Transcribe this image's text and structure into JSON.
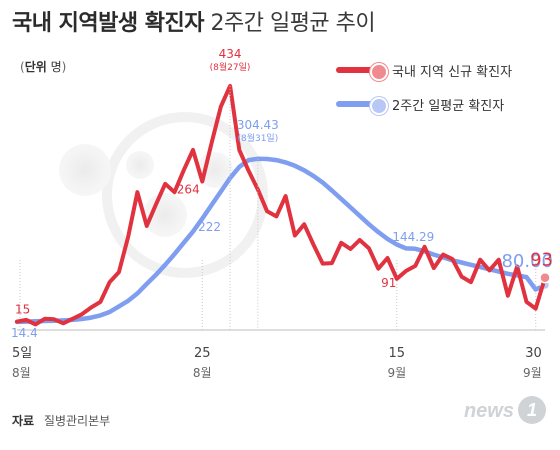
{
  "header": {
    "title_bold": "국내 지역발생 확진자",
    "title_light": "2주간 일평균 추이"
  },
  "unit": {
    "label": "단위",
    "value": "명"
  },
  "legend": [
    {
      "label": "국내 지역 신규 확진자",
      "color": "#e0323f"
    },
    {
      "label": "2주간 일평균 확진자",
      "color": "#7f9ef0"
    }
  ],
  "source": {
    "label": "자료",
    "value": "질병관리본부"
  },
  "logo": {
    "text": "news",
    "badge": "1"
  },
  "chart_data": {
    "type": "line",
    "x_ticks": [
      {
        "day": 1,
        "top": "5일",
        "bottom": "8월"
      },
      {
        "day": 21,
        "top": "25",
        "bottom": "8월"
      },
      {
        "day": 42,
        "top": "15",
        "bottom": "9월"
      },
      {
        "day": 57,
        "top": "30",
        "bottom": "9월"
      }
    ],
    "y_range": [
      0,
      480
    ],
    "series": [
      {
        "name": "국내 지역 신규 확진자",
        "color": "#e0323f",
        "values": [
          15,
          18,
          10,
          20,
          19,
          12,
          20,
          28,
          40,
          50,
          85,
          103,
          166,
          245,
          185,
          223,
          260,
          245,
          284,
          320,
          264,
          332,
          397,
          434,
          320,
          283,
          250,
          211,
          202,
          238,
          168,
          188,
          152,
          118,
          119,
          155,
          144,
          160,
          145,
          109,
          128,
          91,
          105,
          114,
          148,
          110,
          134,
          126,
          95,
          85,
          125,
          106,
          125,
          61,
          113,
          50,
          38,
          93
        ]
      },
      {
        "name": "2주간 일평균 확진자",
        "color": "#7f9ef0",
        "values": [
          14.4,
          15,
          15.5,
          16,
          16.5,
          17,
          18,
          19.5,
          22,
          26,
          32,
          42,
          52,
          65,
          82,
          98,
          116,
          135,
          155,
          175,
          198,
          222,
          246,
          270,
          290,
          302,
          304.43,
          304,
          302,
          298,
          292,
          284,
          274,
          262,
          248,
          233,
          218,
          203,
          188,
          174,
          162,
          152,
          145,
          144.29,
          140,
          134,
          129,
          124,
          120,
          116,
          112,
          108,
          104,
          100,
          97,
          94,
          72,
          80
        ]
      }
    ],
    "annotations": [
      {
        "series": 0,
        "index": 0,
        "label": "15"
      },
      {
        "series": 1,
        "index": 0,
        "label": "14.4"
      },
      {
        "series": 0,
        "index": 23,
        "label": "434",
        "sub": "(8월27일)"
      },
      {
        "series": 0,
        "index": 20,
        "label": "264"
      },
      {
        "series": 1,
        "index": 21,
        "label": "222"
      },
      {
        "series": 1,
        "index": 26,
        "label": "304.43",
        "sub": "(8월31일)"
      },
      {
        "series": 0,
        "index": 41,
        "label": "91"
      },
      {
        "series": 1,
        "index": 43,
        "label": "144.29"
      },
      {
        "series": 1,
        "index": 57,
        "label": "80.00"
      },
      {
        "series": 0,
        "index": 57,
        "label": "93"
      }
    ]
  }
}
